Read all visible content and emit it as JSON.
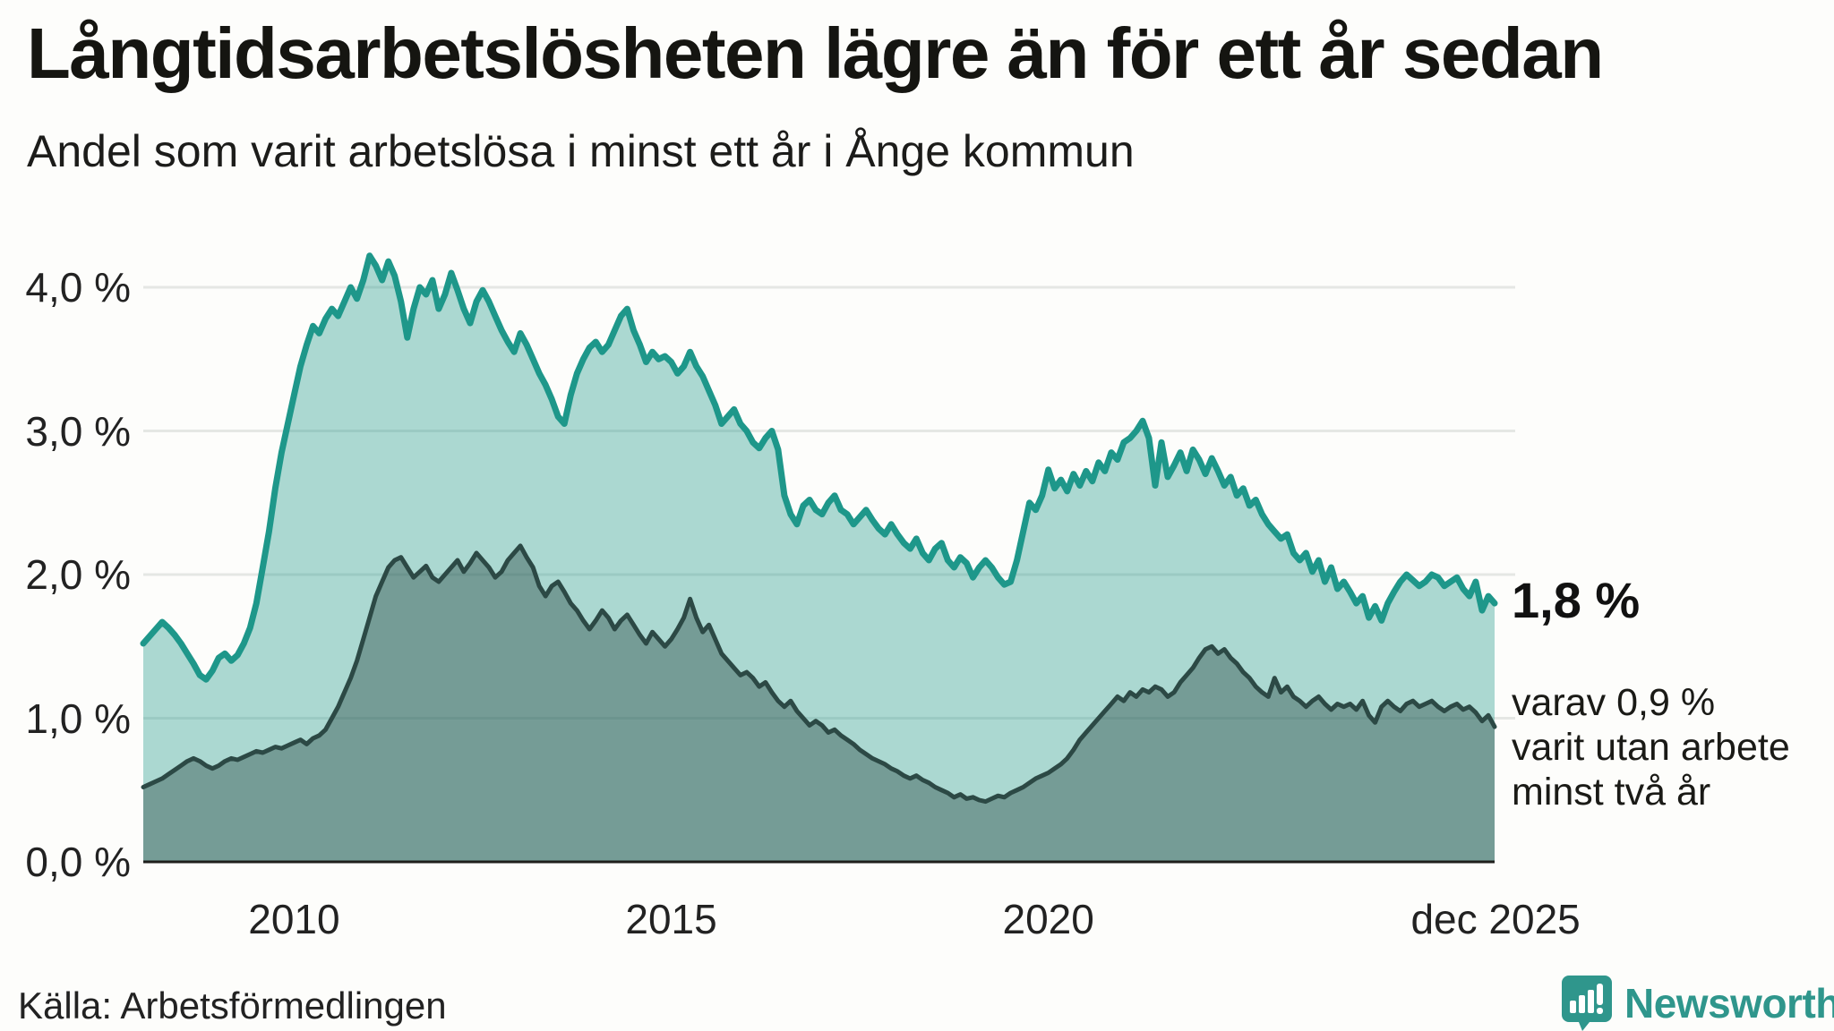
{
  "header": {
    "title": "Långtidsarbetslösheten lägre än för ett år sedan",
    "subtitle": "Andel som varit arbetslösa i minst ett år i Ånge kommun"
  },
  "chart_data": {
    "type": "area",
    "title": "Långtidsarbetslösheten lägre än för ett år sedan",
    "subtitle": "Andel som varit arbetslösa i minst ett år i Ånge kommun",
    "unit": "%",
    "frequency": "monthly",
    "x_start": "2008-01",
    "x_end": "2025-12",
    "ylim": [
      0,
      4.5
    ],
    "grid": true,
    "y_ticks": [
      {
        "label": "0,0 %",
        "value": 0
      },
      {
        "label": "1,0 %",
        "value": 1
      },
      {
        "label": "2,0 %",
        "value": 2
      },
      {
        "label": "3,0 %",
        "value": 3
      },
      {
        "label": "4,0 %",
        "value": 4
      }
    ],
    "x_ticks": [
      {
        "label": "2010",
        "year": 2010.0
      },
      {
        "label": "2015",
        "year": 2015.0
      },
      {
        "label": "2020",
        "year": 2020.0
      },
      {
        "label": "dec 2025",
        "year": 2025.93
      }
    ],
    "series": [
      {
        "name": "Andel som varit arbetslösa i minst ett år",
        "line_color": "#1e978a",
        "fill_color": "rgba(30,151,138,0.37)",
        "end_value": 1.8,
        "values": [
          1.52,
          1.57,
          1.62,
          1.67,
          1.63,
          1.58,
          1.52,
          1.45,
          1.38,
          1.3,
          1.27,
          1.33,
          1.42,
          1.45,
          1.4,
          1.44,
          1.52,
          1.63,
          1.8,
          2.05,
          2.3,
          2.6,
          2.85,
          3.05,
          3.25,
          3.45,
          3.6,
          3.73,
          3.68,
          3.78,
          3.85,
          3.8,
          3.9,
          4.0,
          3.92,
          4.05,
          4.22,
          4.15,
          4.05,
          4.18,
          4.08,
          3.9,
          3.65,
          3.85,
          4.0,
          3.95,
          4.05,
          3.85,
          3.95,
          4.1,
          3.98,
          3.85,
          3.75,
          3.9,
          3.98,
          3.9,
          3.8,
          3.7,
          3.62,
          3.55,
          3.68,
          3.6,
          3.5,
          3.4,
          3.32,
          3.22,
          3.1,
          3.05,
          3.25,
          3.4,
          3.5,
          3.58,
          3.62,
          3.55,
          3.6,
          3.7,
          3.8,
          3.85,
          3.7,
          3.6,
          3.48,
          3.55,
          3.5,
          3.52,
          3.48,
          3.4,
          3.45,
          3.55,
          3.45,
          3.38,
          3.28,
          3.18,
          3.05,
          3.1,
          3.15,
          3.05,
          3.0,
          2.92,
          2.88,
          2.95,
          3.0,
          2.87,
          2.55,
          2.42,
          2.35,
          2.48,
          2.52,
          2.45,
          2.42,
          2.5,
          2.55,
          2.45,
          2.42,
          2.35,
          2.4,
          2.45,
          2.38,
          2.32,
          2.28,
          2.35,
          2.28,
          2.22,
          2.18,
          2.25,
          2.15,
          2.1,
          2.18,
          2.22,
          2.1,
          2.05,
          2.12,
          2.08,
          1.98,
          2.05,
          2.1,
          2.05,
          1.98,
          1.93,
          1.95,
          2.1,
          2.3,
          2.5,
          2.45,
          2.55,
          2.73,
          2.6,
          2.66,
          2.58,
          2.7,
          2.62,
          2.72,
          2.65,
          2.78,
          2.72,
          2.85,
          2.8,
          2.92,
          2.95,
          3.0,
          3.07,
          2.95,
          2.62,
          2.92,
          2.68,
          2.76,
          2.85,
          2.72,
          2.87,
          2.8,
          2.7,
          2.81,
          2.72,
          2.62,
          2.68,
          2.55,
          2.6,
          2.48,
          2.52,
          2.42,
          2.35,
          2.3,
          2.25,
          2.28,
          2.15,
          2.1,
          2.15,
          2.02,
          2.1,
          1.95,
          2.05,
          1.9,
          1.95,
          1.88,
          1.8,
          1.85,
          1.7,
          1.78,
          1.68,
          1.8,
          1.88,
          1.95,
          2.0,
          1.96,
          1.92,
          1.95,
          2.0,
          1.98,
          1.92,
          1.95,
          1.98,
          1.9,
          1.85,
          1.95,
          1.75,
          1.85,
          1.8
        ]
      },
      {
        "name": "varav varit utan arbete minst två år",
        "line_color": "#2c4945",
        "fill_color": "rgba(44,73,69,0.42)",
        "end_value": 0.9,
        "values": [
          0.52,
          0.54,
          0.56,
          0.58,
          0.61,
          0.64,
          0.67,
          0.7,
          0.72,
          0.7,
          0.67,
          0.65,
          0.67,
          0.7,
          0.72,
          0.71,
          0.73,
          0.75,
          0.77,
          0.76,
          0.78,
          0.8,
          0.79,
          0.81,
          0.83,
          0.85,
          0.82,
          0.86,
          0.88,
          0.92,
          1.0,
          1.08,
          1.18,
          1.28,
          1.4,
          1.55,
          1.7,
          1.85,
          1.95,
          2.05,
          2.1,
          2.12,
          2.05,
          1.98,
          2.02,
          2.06,
          1.98,
          1.95,
          2.0,
          2.05,
          2.1,
          2.02,
          2.08,
          2.15,
          2.1,
          2.05,
          1.98,
          2.02,
          2.1,
          2.15,
          2.2,
          2.12,
          2.05,
          1.92,
          1.85,
          1.92,
          1.95,
          1.88,
          1.8,
          1.75,
          1.68,
          1.62,
          1.68,
          1.75,
          1.7,
          1.62,
          1.68,
          1.72,
          1.65,
          1.58,
          1.52,
          1.6,
          1.55,
          1.5,
          1.55,
          1.62,
          1.7,
          1.83,
          1.7,
          1.6,
          1.65,
          1.55,
          1.45,
          1.4,
          1.35,
          1.3,
          1.32,
          1.28,
          1.22,
          1.25,
          1.18,
          1.12,
          1.08,
          1.12,
          1.05,
          1.0,
          0.95,
          0.98,
          0.95,
          0.9,
          0.92,
          0.88,
          0.85,
          0.82,
          0.78,
          0.75,
          0.72,
          0.7,
          0.68,
          0.65,
          0.63,
          0.6,
          0.58,
          0.6,
          0.57,
          0.55,
          0.52,
          0.5,
          0.48,
          0.45,
          0.47,
          0.44,
          0.45,
          0.43,
          0.42,
          0.44,
          0.46,
          0.45,
          0.48,
          0.5,
          0.52,
          0.55,
          0.58,
          0.6,
          0.62,
          0.65,
          0.68,
          0.72,
          0.78,
          0.85,
          0.9,
          0.95,
          1.0,
          1.05,
          1.1,
          1.15,
          1.12,
          1.18,
          1.15,
          1.2,
          1.18,
          1.22,
          1.2,
          1.15,
          1.18,
          1.25,
          1.3,
          1.35,
          1.42,
          1.48,
          1.5,
          1.45,
          1.48,
          1.42,
          1.38,
          1.32,
          1.28,
          1.22,
          1.18,
          1.15,
          1.28,
          1.18,
          1.22,
          1.15,
          1.12,
          1.08,
          1.12,
          1.15,
          1.1,
          1.06,
          1.1,
          1.08,
          1.1,
          1.06,
          1.12,
          1.02,
          0.97,
          1.08,
          1.12,
          1.08,
          1.05,
          1.1,
          1.12,
          1.08,
          1.1,
          1.12,
          1.08,
          1.05,
          1.08,
          1.1,
          1.06,
          1.08,
          1.04,
          0.98,
          1.02,
          0.94
        ]
      }
    ],
    "annotations": {
      "primary": "1,8 %",
      "secondary_lines": [
        "varav 0,9 %",
        "varit utan arbete",
        "minst två år"
      ]
    },
    "colors": {
      "gridline": "#e5e7e4",
      "zero_axis": "#1f1f1c",
      "background": "#fdfdfb"
    }
  },
  "footer": {
    "source": "Källa: Arbetsförmedlingen",
    "brand": "Newsworthy"
  }
}
